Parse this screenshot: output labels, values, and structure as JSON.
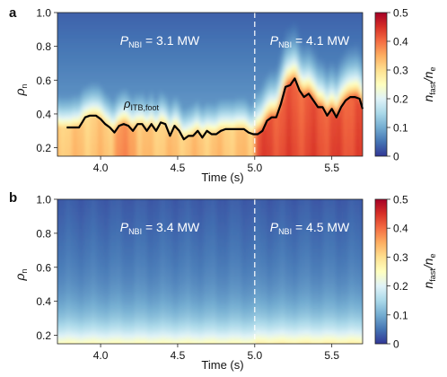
{
  "panels": [
    {
      "letter": "a",
      "annotations": [
        {
          "sym": "P",
          "sub": "NBI",
          "val": " = 3.1 MW",
          "x": 4.35
        },
        {
          "sym": "P",
          "sub": "NBI",
          "val": " = 4.1 MW",
          "x": 5.3
        }
      ],
      "curve_label": {
        "sym": "ρ",
        "sub": "ITB,foot"
      }
    },
    {
      "letter": "b",
      "annotations": [
        {
          "sym": "P",
          "sub": "NBI",
          "val": " = 3.4 MW",
          "x": 4.35
        },
        {
          "sym": "P",
          "sub": "NBI",
          "val": " = 4.5 MW",
          "x": 5.3
        }
      ]
    }
  ],
  "axes": {
    "xlabel": "Time (s)",
    "ylabel": {
      "sym": "ρ",
      "sub": "n"
    },
    "colorbar_label": {
      "a": "n",
      "asub": "fast",
      "b": "/n",
      "bsub": "e"
    },
    "x_ticks": [
      "4.0",
      "4.5",
      "5.0",
      "5.5"
    ],
    "y_ticks": [
      "0.2",
      "0.4",
      "0.6",
      "0.8",
      "1.0"
    ],
    "cb_ticks": [
      "0",
      "0.1",
      "0.2",
      "0.3",
      "0.4",
      "0.5"
    ]
  },
  "colors": {
    "cmap": [
      "#313695",
      "#4575b4",
      "#74add1",
      "#abd9e9",
      "#e0f3f8",
      "#ffffbf",
      "#fee090",
      "#fdae61",
      "#f46d43",
      "#d73027",
      "#a50026"
    ],
    "curve": "#000000",
    "divider": "#ffffff"
  },
  "chart_data": [
    {
      "type": "heatmap",
      "panel": "a",
      "xlabel": "Time (s)",
      "ylabel": "ρn",
      "xlim": [
        3.72,
        5.7
      ],
      "ylim": [
        0.15,
        1.0
      ],
      "colorbar_range": [
        0,
        0.5
      ],
      "color_quantity": "n_fast/n_e",
      "transition_time": 5.0,
      "series": [
        {
          "name": "ρITB,foot",
          "x": [
            3.78,
            3.82,
            3.86,
            3.88,
            3.9,
            3.93,
            3.97,
            4.0,
            4.03,
            4.06,
            4.09,
            4.12,
            4.15,
            4.18,
            4.21,
            4.24,
            4.27,
            4.3,
            4.33,
            4.36,
            4.39,
            4.42,
            4.45,
            4.48,
            4.51,
            4.54,
            4.57,
            4.6,
            4.63,
            4.66,
            4.69,
            4.72,
            4.75,
            4.78,
            4.81,
            4.84,
            4.87,
            4.9,
            4.93,
            4.96,
            4.99,
            5.02,
            5.05,
            5.08,
            5.11,
            5.14,
            5.17,
            5.2,
            5.23,
            5.26,
            5.29,
            5.32,
            5.35,
            5.38,
            5.41,
            5.44,
            5.47,
            5.5,
            5.53,
            5.56,
            5.59,
            5.62,
            5.65,
            5.68,
            5.7
          ],
          "y": [
            0.32,
            0.32,
            0.32,
            0.35,
            0.38,
            0.39,
            0.39,
            0.37,
            0.34,
            0.32,
            0.29,
            0.33,
            0.34,
            0.33,
            0.3,
            0.34,
            0.34,
            0.3,
            0.34,
            0.3,
            0.35,
            0.34,
            0.27,
            0.33,
            0.3,
            0.25,
            0.27,
            0.27,
            0.3,
            0.26,
            0.3,
            0.28,
            0.28,
            0.3,
            0.31,
            0.31,
            0.31,
            0.31,
            0.31,
            0.29,
            0.28,
            0.28,
            0.3,
            0.36,
            0.38,
            0.38,
            0.46,
            0.56,
            0.57,
            0.61,
            0.54,
            0.5,
            0.52,
            0.48,
            0.44,
            0.44,
            0.39,
            0.43,
            0.38,
            0.44,
            0.48,
            0.5,
            0.5,
            0.49,
            0.43
          ]
        }
      ]
    },
    {
      "type": "heatmap",
      "panel": "b",
      "xlabel": "Time (s)",
      "ylabel": "ρn",
      "xlim": [
        3.72,
        5.7
      ],
      "ylim": [
        0.15,
        1.0
      ],
      "colorbar_range": [
        0,
        0.5
      ],
      "color_quantity": "n_fast/n_e",
      "transition_time": 5.0
    }
  ]
}
